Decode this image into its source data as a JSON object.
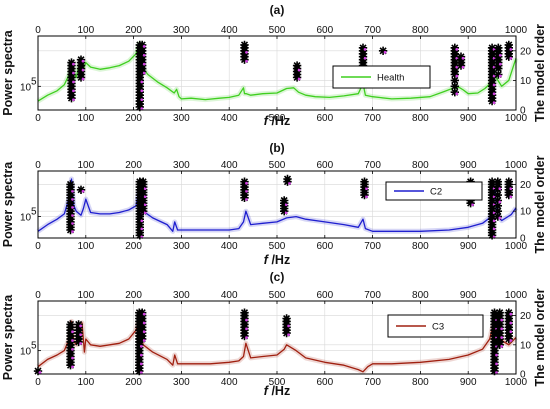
{
  "chart_data": [
    {
      "type": "line",
      "title": "(a)",
      "xlabel_italic": "f",
      "xlabel_unit": " /Hz",
      "ylabel": "Power spectra",
      "ylabel_right": "The model order",
      "x_ticks": [
        "0",
        "100",
        "200",
        "300",
        "400",
        "500",
        "600",
        "700",
        "800",
        "900",
        "1000"
      ],
      "xlim": [
        0,
        1000
      ],
      "y_tick_left": "10",
      "y_tick_left_exp": "5",
      "y2_ticks": [
        "0",
        "10",
        "20"
      ],
      "y2lim": [
        0,
        25
      ],
      "grid": true,
      "legend": {
        "position": "right",
        "entries": [
          "Health"
        ]
      },
      "series": [
        {
          "name": "Health",
          "color": "#3fcf1f",
          "x": [
            0,
            20,
            40,
            55,
            65,
            70,
            75,
            80,
            85,
            90,
            95,
            100,
            110,
            130,
            150,
            170,
            190,
            205,
            212,
            216,
            220,
            230,
            250,
            270,
            285,
            290,
            295,
            300,
            320,
            350,
            380,
            400,
            420,
            430,
            432,
            436,
            445,
            470,
            500,
            520,
            535,
            545,
            560,
            580,
            610,
            640,
            670,
            680,
            685,
            700,
            740,
            780,
            820,
            850,
            870,
            880,
            890,
            900,
            920,
            935,
            945,
            955,
            960,
            970,
            985,
            1000
          ],
          "y": [
            12,
            20,
            26,
            34,
            48,
            62,
            52,
            44,
            58,
            68,
            56,
            64,
            58,
            55,
            57,
            60,
            66,
            76,
            90,
            66,
            56,
            48,
            38,
            30,
            23,
            28,
            18,
            15,
            16,
            14,
            16,
            17,
            20,
            30,
            22,
            22,
            20,
            22,
            23,
            29,
            30,
            24,
            20,
            18,
            17,
            19,
            22,
            36,
            20,
            18,
            15,
            16,
            18,
            25,
            30,
            31,
            27,
            22,
            23,
            29,
            35,
            50,
            42,
            32,
            40,
            70
          ]
        }
      ],
      "stability_markers": [
        {
          "x": 70,
          "orders": [
            4,
            5,
            6,
            7,
            8,
            9,
            10,
            11,
            12,
            13,
            14,
            15,
            16
          ]
        },
        {
          "x": 90,
          "orders": [
            11,
            12,
            13,
            14,
            15,
            16,
            17
          ]
        },
        {
          "x": 213,
          "orders": [
            1,
            2,
            3,
            4,
            5,
            6,
            7,
            8,
            9,
            10,
            11,
            12,
            13,
            14,
            15,
            16,
            17,
            18,
            19,
            20,
            21,
            22
          ]
        },
        {
          "x": 218,
          "orders": [
            13,
            14,
            15,
            16,
            17,
            18,
            19,
            20,
            21,
            22
          ]
        },
        {
          "x": 432,
          "orders": [
            17,
            18,
            19,
            20,
            21,
            22
          ]
        },
        {
          "x": 542,
          "orders": [
            11,
            12,
            13,
            14,
            15
          ]
        },
        {
          "x": 680,
          "orders": [
            12,
            13,
            14,
            15,
            16,
            17,
            18,
            19,
            20,
            21
          ]
        },
        {
          "x": 722,
          "orders": [
            20
          ]
        },
        {
          "x": 872,
          "orders": [
            6,
            8,
            10,
            12,
            13,
            14,
            15,
            16,
            17,
            18,
            19,
            20,
            21
          ]
        },
        {
          "x": 885,
          "orders": [
            15,
            16,
            17,
            18
          ]
        },
        {
          "x": 950,
          "orders": [
            3,
            4,
            5,
            6,
            7,
            8,
            9,
            10,
            11,
            12,
            13,
            14,
            15,
            16,
            17,
            18,
            19,
            20,
            21
          ]
        },
        {
          "x": 963,
          "orders": [
            12,
            14,
            15,
            16,
            17,
            18,
            19,
            20,
            21
          ]
        },
        {
          "x": 985,
          "orders": [
            18,
            19,
            20,
            21,
            22
          ]
        }
      ]
    },
    {
      "type": "line",
      "title": "(b)",
      "xlabel_italic": "f",
      "xlabel_unit": " /Hz",
      "ylabel": "Power spectra",
      "ylabel_right": "The model order",
      "x_ticks": [
        "0",
        "100",
        "200",
        "300",
        "400",
        "500",
        "600",
        "700",
        "800",
        "900",
        "1000"
      ],
      "xlim": [
        0,
        1000
      ],
      "y_tick_left": "10",
      "y_tick_left_exp": "5",
      "y2_ticks": [
        "0",
        "10",
        "20"
      ],
      "y2lim": [
        0,
        25
      ],
      "grid": true,
      "legend": {
        "position": "right",
        "entries": [
          "C2"
        ]
      },
      "series": [
        {
          "name": "C2",
          "color": "#1f1fcf",
          "x": [
            0,
            20,
            40,
            55,
            65,
            70,
            75,
            80,
            90,
            95,
            100,
            110,
            130,
            150,
            170,
            190,
            205,
            212,
            216,
            220,
            240,
            270,
            282,
            286,
            292,
            320,
            360,
            400,
            420,
            430,
            435,
            445,
            470,
            500,
            520,
            540,
            560,
            600,
            640,
            670,
            680,
            685,
            700,
            740,
            800,
            860,
            900,
            930,
            945,
            952,
            955,
            960,
            965,
            970,
            990,
            1000
          ],
          "y": [
            10,
            20,
            28,
            36,
            60,
            88,
            48,
            40,
            34,
            44,
            58,
            38,
            36,
            36,
            38,
            42,
            48,
            72,
            52,
            40,
            30,
            20,
            10,
            24,
            12,
            12,
            12,
            12,
            14,
            24,
            40,
            20,
            22,
            24,
            30,
            32,
            28,
            24,
            20,
            16,
            28,
            14,
            10,
            10,
            10,
            12,
            16,
            22,
            30,
            50,
            75,
            40,
            30,
            26,
            35,
            45
          ]
        }
      ],
      "stability_markers": [
        {
          "x": 68,
          "orders": [
            3,
            4,
            5,
            6,
            7,
            8,
            9,
            10,
            11,
            12,
            13,
            14,
            15,
            16,
            17,
            18,
            19,
            20
          ]
        },
        {
          "x": 90,
          "orders": [
            18
          ]
        },
        {
          "x": 213,
          "orders": [
            1,
            2,
            3,
            4,
            5,
            6,
            7,
            8,
            9,
            10,
            11,
            12,
            13,
            14,
            15,
            16,
            17,
            18,
            19,
            20,
            21
          ]
        },
        {
          "x": 220,
          "orders": [
            10,
            11,
            12,
            13,
            14,
            15,
            16,
            17,
            18,
            19,
            20,
            21
          ]
        },
        {
          "x": 432,
          "orders": [
            15,
            16,
            17,
            18,
            19,
            20,
            21
          ]
        },
        {
          "x": 515,
          "orders": [
            10,
            11,
            12,
            13,
            14
          ]
        },
        {
          "x": 522,
          "orders": [
            21,
            22
          ]
        },
        {
          "x": 683,
          "orders": [
            16,
            17,
            18,
            19,
            20,
            21
          ]
        },
        {
          "x": 905,
          "orders": [
            13,
            14,
            15,
            16,
            17,
            18,
            19,
            20,
            21
          ]
        },
        {
          "x": 950,
          "orders": [
            1,
            2,
            3,
            4,
            5,
            6,
            7,
            8,
            9,
            10,
            11,
            12,
            13,
            14,
            15,
            16,
            17,
            18,
            19,
            20,
            21
          ]
        },
        {
          "x": 962,
          "orders": [
            8,
            10,
            12,
            14,
            16,
            18,
            19,
            20,
            21
          ]
        },
        {
          "x": 985,
          "orders": [
            16,
            17,
            18,
            19,
            20,
            21
          ]
        }
      ]
    },
    {
      "type": "line",
      "title": "(c)",
      "xlabel_italic": "f",
      "xlabel_unit": " /Hz",
      "ylabel": "Power spectra",
      "ylabel_right": "The model order",
      "x_ticks": [
        "0",
        "100",
        "200",
        "300",
        "400",
        "500",
        "600",
        "700",
        "800",
        "900",
        "1000"
      ],
      "xlim": [
        0,
        1000
      ],
      "y_tick_left": "10",
      "y_tick_left_exp": "5",
      "y2_ticks": [
        "0",
        "10",
        "20"
      ],
      "y2lim": [
        0,
        25
      ],
      "grid": true,
      "legend": {
        "position": "right",
        "entries": [
          "C3"
        ]
      },
      "series": [
        {
          "name": "C3",
          "color": "#a02010",
          "x": [
            0,
            20,
            40,
            55,
            65,
            70,
            75,
            80,
            88,
            92,
            97,
            100,
            110,
            130,
            150,
            170,
            190,
            205,
            212,
            216,
            220,
            240,
            270,
            282,
            286,
            292,
            320,
            360,
            400,
            420,
            430,
            435,
            445,
            470,
            500,
            515,
            520,
            540,
            560,
            600,
            640,
            670,
            680,
            690,
            700,
            740,
            800,
            860,
            900,
            930,
            945,
            952,
            958,
            962,
            966,
            972,
            985,
            1000
          ],
          "y": [
            10,
            20,
            26,
            32,
            48,
            72,
            45,
            40,
            58,
            70,
            30,
            48,
            40,
            38,
            40,
            42,
            48,
            60,
            75,
            50,
            40,
            30,
            20,
            12,
            26,
            14,
            14,
            14,
            16,
            18,
            24,
            42,
            22,
            24,
            26,
            34,
            40,
            32,
            22,
            16,
            12,
            6,
            3,
            10,
            14,
            14,
            16,
            20,
            26,
            34,
            48,
            68,
            55,
            75,
            60,
            45,
            40,
            50
          ]
        }
      ],
      "stability_markers": [
        {
          "x": 68,
          "orders": [
            3,
            4,
            5,
            6,
            7,
            8,
            9,
            10,
            11,
            12,
            13,
            14,
            15,
            16,
            17
          ]
        },
        {
          "x": 85,
          "orders": [
            11,
            12,
            13,
            14,
            15,
            16,
            17
          ]
        },
        {
          "x": 212,
          "orders": [
            1,
            2,
            3,
            4,
            5,
            6,
            7,
            8,
            9,
            10,
            11,
            12,
            13,
            14,
            15,
            16,
            17,
            18,
            19,
            20,
            21
          ]
        },
        {
          "x": 218,
          "orders": [
            12,
            13,
            14,
            15,
            16,
            17,
            18,
            19,
            20,
            21
          ]
        },
        {
          "x": 432,
          "orders": [
            13,
            14,
            15,
            16,
            17,
            18,
            19,
            20,
            21
          ]
        },
        {
          "x": 520,
          "orders": [
            14,
            15,
            16,
            17,
            18,
            19
          ]
        },
        {
          "x": 955,
          "orders": [
            1,
            2,
            3,
            4,
            5,
            6,
            7,
            8,
            9,
            10,
            11,
            12,
            13,
            14,
            15,
            16,
            17,
            18,
            19,
            20,
            21
          ]
        },
        {
          "x": 966,
          "orders": [
            10,
            11,
            12,
            13,
            14,
            15,
            16,
            17,
            18,
            19,
            20,
            21
          ]
        },
        {
          "x": 985,
          "orders": [
            12,
            13,
            14,
            15,
            16,
            17,
            18,
            19,
            20,
            21
          ]
        },
        {
          "x": 0,
          "orders": [
            1
          ]
        }
      ]
    }
  ]
}
